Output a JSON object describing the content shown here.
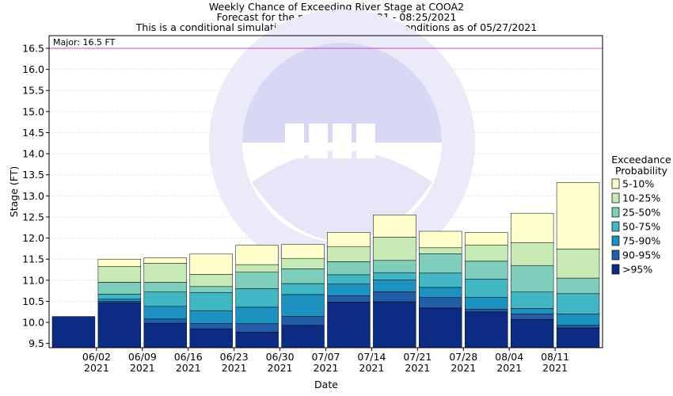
{
  "chart_data": {
    "type": "bar",
    "stacked": true,
    "title_lines": [
      "Weekly Chance of Exceeding River Stage at COOA2",
      "Forecast for the period 05/27/2021 - 08:25/2021",
      "This is a conditional simulation based on the current conditions as of 05/27/2021"
    ],
    "xlabel": "Date",
    "ylabel": "Stage (FT)",
    "ylim": [
      9.4,
      16.8
    ],
    "yticks": [
      9.5,
      10.0,
      10.5,
      11.0,
      11.5,
      12.0,
      12.5,
      13.0,
      13.5,
      14.0,
      14.5,
      15.0,
      15.5,
      16.0,
      16.5
    ],
    "ytick_labels": [
      "9.5",
      "10.0",
      "10.5",
      "11.0",
      "11.5",
      "12.0",
      "12.5",
      "13.0",
      "13.5",
      "14.0",
      "14.5",
      "15.0",
      "15.5",
      "16.0",
      "16.5"
    ],
    "xtick_labels": [
      {
        "date": "06/02",
        "year": "2021"
      },
      {
        "date": "06/09",
        "year": "2021"
      },
      {
        "date": "06/16",
        "year": "2021"
      },
      {
        "date": "06/23",
        "year": "2021"
      },
      {
        "date": "06/30",
        "year": "2021"
      },
      {
        "date": "07/07",
        "year": "2021"
      },
      {
        "date": "07/14",
        "year": "2021"
      },
      {
        "date": "07/21",
        "year": "2021"
      },
      {
        "date": "07/28",
        "year": "2021"
      },
      {
        "date": "08/04",
        "year": "2021"
      },
      {
        "date": "08/11",
        "year": "2021"
      }
    ],
    "grid": true,
    "threshold": {
      "label": "Major: 16.5 FT",
      "value": 16.5,
      "color": "#cc44cc"
    },
    "legend": {
      "title_lines": [
        "Exceedance",
        "Probability"
      ],
      "placement": "right",
      "entries": [
        {
          "label": "5-10%",
          "color": "#ffffcc"
        },
        {
          "label": "10-25%",
          "color": "#c7e9b4"
        },
        {
          "label": "25-50%",
          "color": "#7fcdbb"
        },
        {
          "label": "50-75%",
          "color": "#41b6c4"
        },
        {
          "label": "75-90%",
          "color": "#1d91c0"
        },
        {
          "label": "90-95%",
          "color": "#225ea8"
        },
        {
          "label": ">95%",
          "color": "#0c2c84"
        }
      ]
    },
    "series_bounds_note_order": [
      ">95%",
      "90-95%",
      "75-90%",
      "50-75%",
      "25-50%",
      "10-25%",
      "5-10%"
    ],
    "bars": [
      {
        "bounds": [
          10.14,
          10.14,
          10.14,
          10.14,
          10.14,
          10.14,
          10.14
        ]
      },
      {
        "bounds": [
          10.46,
          10.5,
          10.55,
          10.67,
          10.95,
          11.33,
          11.5
        ]
      },
      {
        "bounds": [
          9.98,
          10.08,
          10.38,
          10.72,
          10.95,
          11.4,
          11.53
        ]
      },
      {
        "bounds": [
          9.85,
          9.97,
          10.28,
          10.71,
          10.85,
          11.14,
          11.62
        ]
      },
      {
        "bounds": [
          9.77,
          9.97,
          10.36,
          10.8,
          11.19,
          11.37,
          11.83
        ]
      },
      {
        "bounds": [
          9.93,
          10.14,
          10.66,
          10.92,
          11.27,
          11.52,
          11.85
        ]
      },
      {
        "bounds": [
          10.48,
          10.63,
          10.91,
          11.13,
          11.44,
          11.79,
          12.13
        ]
      },
      {
        "bounds": [
          10.49,
          10.73,
          11.01,
          11.18,
          11.47,
          12.02,
          12.55
        ]
      },
      {
        "bounds": [
          10.34,
          10.59,
          10.83,
          11.17,
          11.63,
          11.77,
          12.16
        ]
      },
      {
        "bounds": [
          10.25,
          10.31,
          10.59,
          11.03,
          11.45,
          11.83,
          12.13
        ]
      },
      {
        "bounds": [
          10.07,
          10.2,
          10.33,
          10.72,
          11.35,
          11.89,
          12.59
        ]
      },
      {
        "bounds": [
          9.87,
          9.93,
          10.2,
          10.68,
          11.05,
          11.74,
          13.32
        ]
      }
    ]
  }
}
